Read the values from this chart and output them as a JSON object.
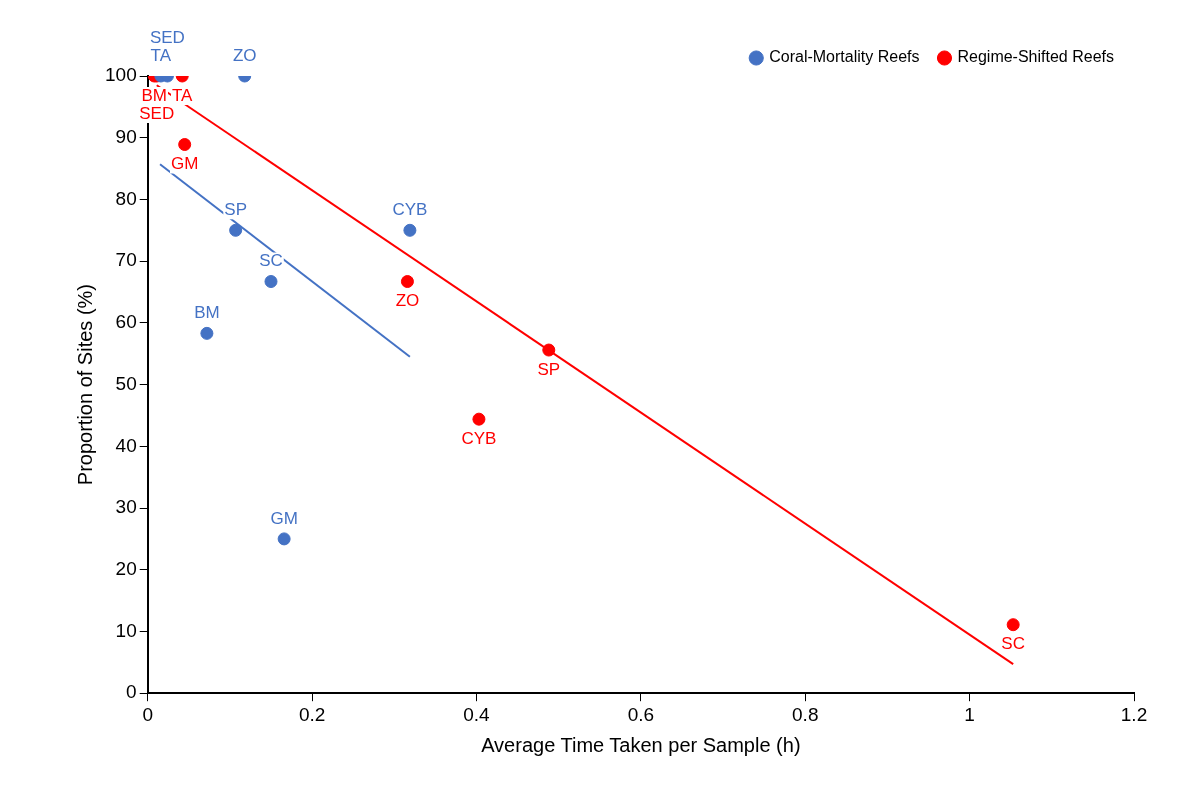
{
  "chart_data": {
    "type": "scatter",
    "xlabel": "Average Time Taken per Sample (h)",
    "ylabel": "Proportion of Sites (%)",
    "xlim": [
      0,
      1.2
    ],
    "xticks": [
      0,
      0.2,
      0.4,
      0.6,
      0.8,
      1,
      1.2
    ],
    "ylim": [
      0,
      100
    ],
    "yticks": [
      0,
      10,
      20,
      30,
      40,
      50,
      60,
      70,
      80,
      90,
      100
    ],
    "grid": false,
    "legend": "top right",
    "marker": "circle",
    "series": [
      {
        "name": "Regime-Shifted Reefs",
        "color": "#ff0000",
        "x": [
          0.008,
          0.011,
          0.042,
          0.045,
          0.316,
          0.488,
          0.403,
          1.053
        ],
        "values": [
          100,
          100,
          100,
          88.9,
          66.7,
          55.6,
          44.4,
          11.1
        ],
        "value_labels": [
          "BM",
          "SED",
          "TA",
          "GM",
          "ZO",
          "SP",
          "CYB",
          "SC"
        ]
      },
      {
        "name": "Coral-Mortality Reefs",
        "color": "#4472c4",
        "x": [
          0.016,
          0.024,
          0.118,
          0.107,
          0.15,
          0.072,
          0.166,
          0.319
        ],
        "values": [
          100,
          100,
          100,
          75,
          66.7,
          58.3,
          25,
          75
        ],
        "value_labels": [
          "TA",
          "SED",
          "ZO",
          "SP",
          "SC",
          "BM",
          "GM",
          "CYB"
        ]
      },
      {
        "type": "line",
        "color": "#ff0000",
        "x": [
          0.011,
          1.053
        ],
        "values": [
          98.5,
          4.7
        ],
        "line_style": "solid",
        "marker": "none"
      },
      {
        "type": "line",
        "color": "#4472c4",
        "x": [
          0.015,
          0.319
        ],
        "values": [
          85.7,
          54.5
        ],
        "line_style": "solid",
        "marker": "none"
      }
    ]
  }
}
